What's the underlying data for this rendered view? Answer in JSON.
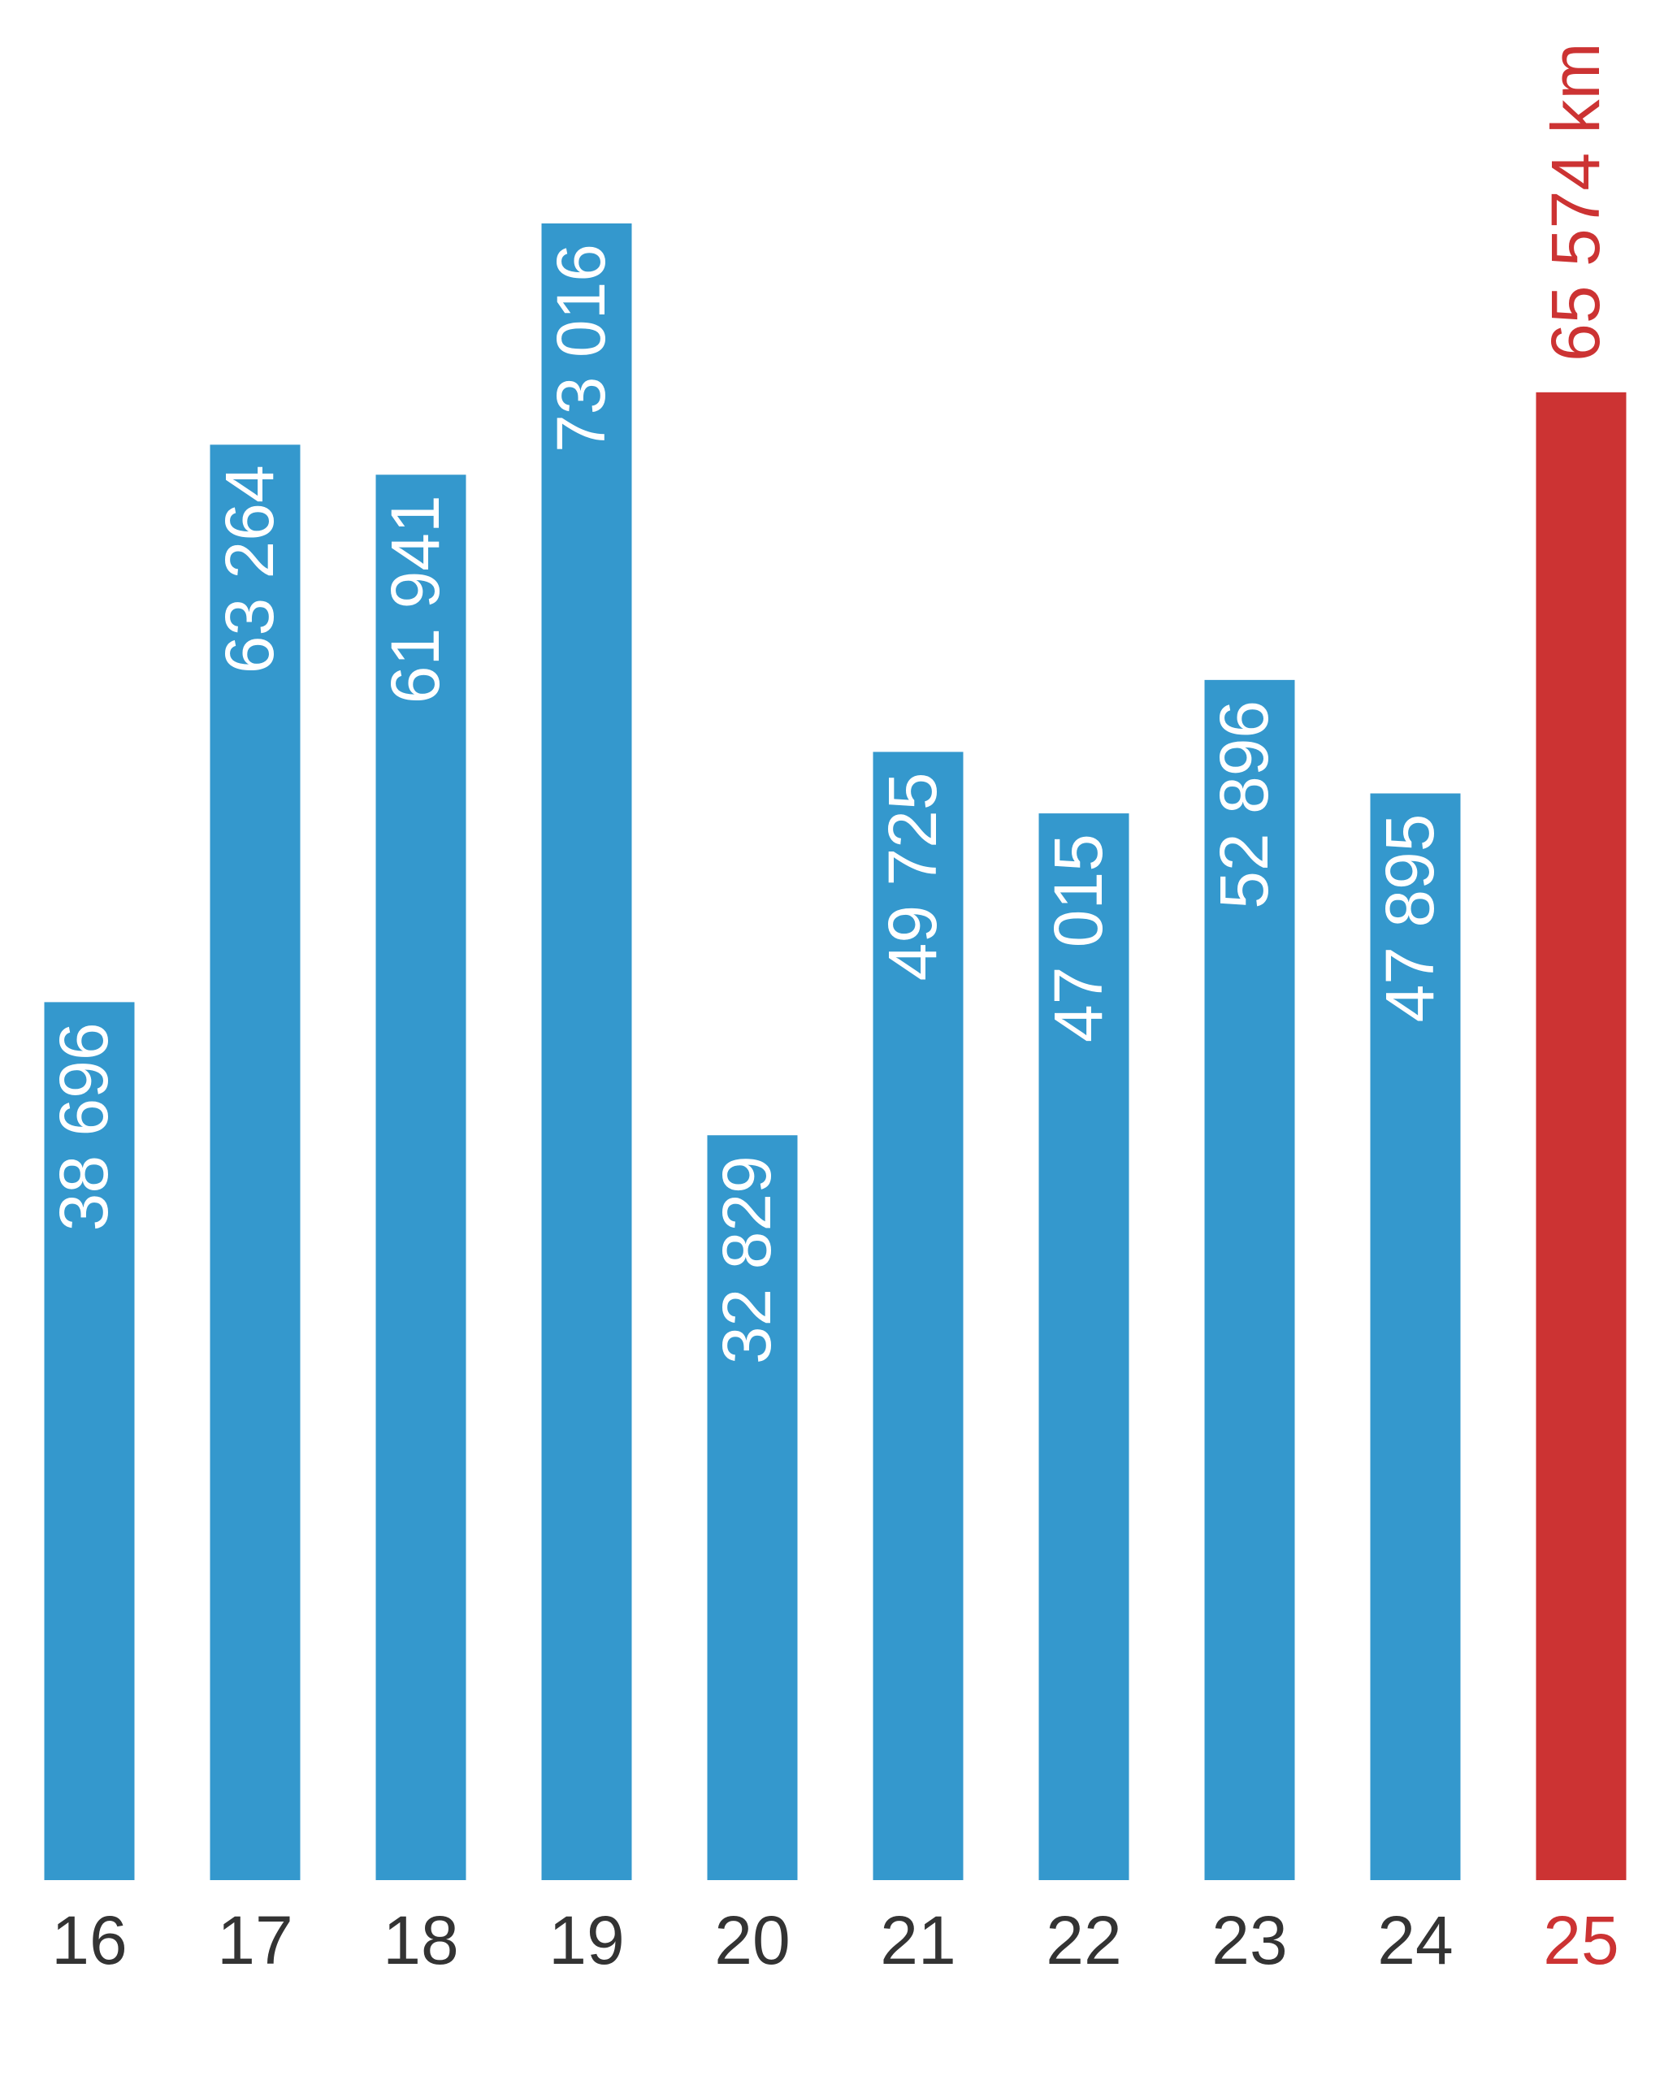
{
  "chart_data": {
    "type": "bar",
    "categories": [
      "16",
      "17",
      "18",
      "19",
      "20",
      "21",
      "22",
      "23",
      "24",
      "25"
    ],
    "values": [
      38696,
      63264,
      61941,
      73016,
      32829,
      49725,
      47015,
      52896,
      47895,
      65574
    ],
    "value_labels": [
      "38 696",
      "63 264",
      "61 941",
      "73 016",
      "32 829",
      "49 725",
      "47 015",
      "52 896",
      "47 895",
      "65 574 km"
    ],
    "color": "#3498cd",
    "colors": [
      "#3498cd",
      "#3498cd",
      "#3498cd",
      "#3498cd",
      "#3498cd",
      "#3498cd",
      "#3498cd",
      "#3498cd",
      "#3498cd",
      "#cc3333"
    ]
  }
}
